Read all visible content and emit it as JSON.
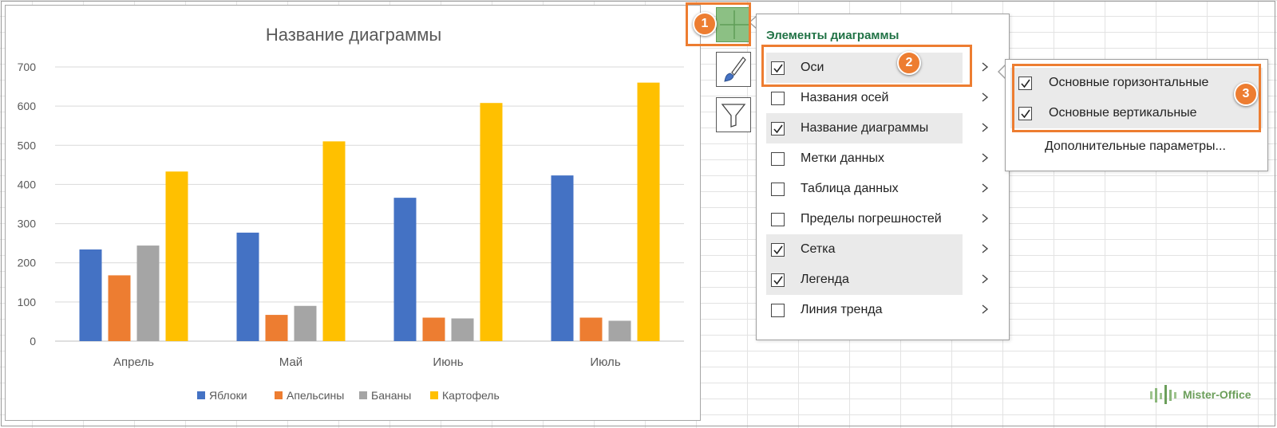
{
  "chart_data": {
    "type": "bar",
    "title": "Название диаграммы",
    "categories": [
      "Апрель",
      "Май",
      "Июнь",
      "Июль"
    ],
    "series": [
      {
        "name": "Яблоки",
        "color": "#4472c4",
        "values": [
          234,
          277,
          366,
          423
        ]
      },
      {
        "name": "Апельсины",
        "color": "#ed7d31",
        "values": [
          168,
          67,
          60,
          60
        ]
      },
      {
        "name": "Бананы",
        "color": "#a5a5a5",
        "values": [
          244,
          90,
          58,
          52
        ]
      },
      {
        "name": "Картофель",
        "color": "#ffc000",
        "values": [
          433,
          510,
          608,
          660
        ]
      }
    ],
    "yticks": [
      0,
      100,
      200,
      300,
      400,
      500,
      600,
      700
    ],
    "ylim": [
      0,
      700
    ],
    "grid": true,
    "legend": "bottom"
  },
  "side_buttons": {
    "plus_icon": "plus-icon",
    "style_icon": "paintbrush-icon",
    "filter_icon": "filter-icon"
  },
  "badges": [
    "1",
    "2",
    "3"
  ],
  "chart_elements_menu": {
    "title": "Элементы диаграммы",
    "items": [
      {
        "label": "Оси",
        "checked": true
      },
      {
        "label": "Названия осей",
        "checked": false
      },
      {
        "label": "Название диаграммы",
        "checked": true
      },
      {
        "label": "Метки данных",
        "checked": false
      },
      {
        "label": "Таблица данных",
        "checked": false
      },
      {
        "label": "Пределы погрешностей",
        "checked": false
      },
      {
        "label": "Сетка",
        "checked": true
      },
      {
        "label": "Легенда",
        "checked": true
      },
      {
        "label": "Линия тренда",
        "checked": false
      }
    ]
  },
  "axes_submenu": {
    "items": [
      {
        "label": "Основные горизонтальные",
        "checked": true
      },
      {
        "label": "Основные вертикальные",
        "checked": true
      }
    ],
    "more": "Дополнительные параметры..."
  },
  "accent_color": "#ed7d31",
  "logo": {
    "text": "Mister-Office",
    "color": "#6b9e5a"
  }
}
